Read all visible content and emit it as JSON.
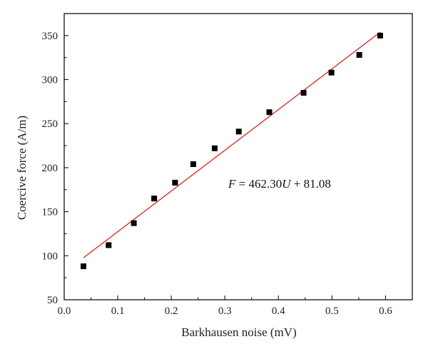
{
  "chart_data": {
    "type": "scatter",
    "xlabel": "Barkhausen noise (mV)",
    "ylabel": "Coercive force (A/m)",
    "xlim": [
      0.0,
      0.65
    ],
    "ylim": [
      50,
      375
    ],
    "x_ticks": [
      "0.0",
      "0.1",
      "0.2",
      "0.3",
      "0.4",
      "0.5",
      "0.6"
    ],
    "x_tick_values": [
      0.0,
      0.1,
      0.2,
      0.3,
      0.4,
      0.5,
      0.6
    ],
    "y_ticks": [
      "50",
      "100",
      "150",
      "200",
      "250",
      "300",
      "350"
    ],
    "y_tick_values": [
      50,
      100,
      150,
      200,
      250,
      300,
      350
    ],
    "grid": false,
    "series": [
      {
        "marker": "square",
        "color": "#000000",
        "x": [
          0.036,
          0.083,
          0.13,
          0.168,
          0.207,
          0.241,
          0.281,
          0.326,
          0.383,
          0.447,
          0.499,
          0.551,
          0.59
        ],
        "y": [
          88,
          112,
          137,
          165,
          183,
          204,
          222,
          241,
          263,
          285,
          308,
          328,
          350
        ]
      }
    ],
    "fit": {
      "slope": 462.3,
      "intercept": 81.08,
      "x_range": [
        0.036,
        0.59
      ],
      "color": "#dd2222"
    },
    "annotation": {
      "f_var": "F",
      "middle": " = 462.30",
      "u_var": "U",
      "tail": " + 81.08"
    }
  }
}
